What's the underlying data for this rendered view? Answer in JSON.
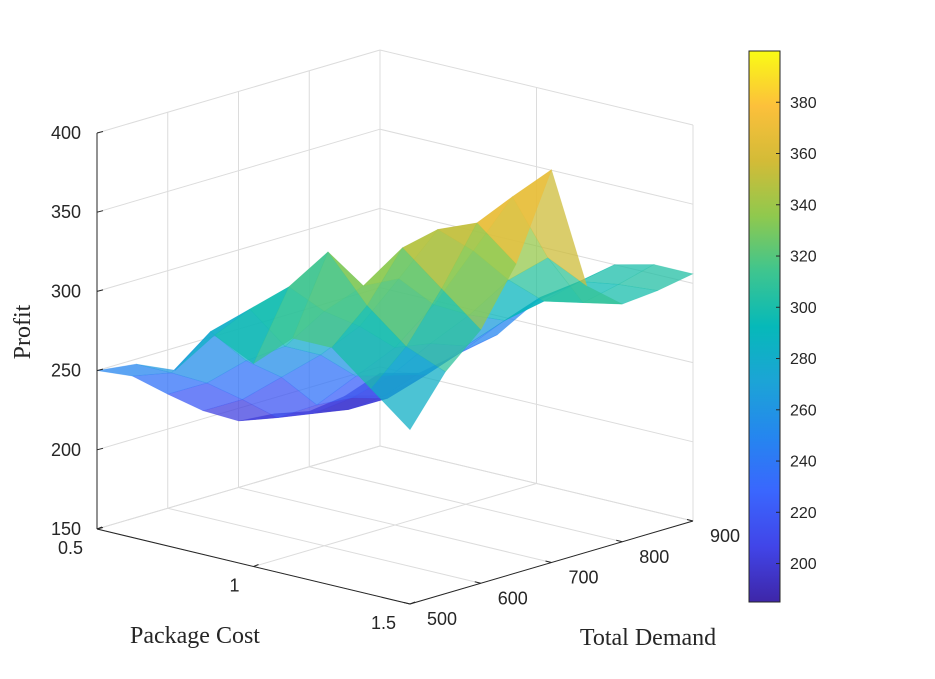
{
  "chart_data": {
    "type": "surface",
    "title": "",
    "xlabel": "Package Cost",
    "ylabel": "Total Demand",
    "zlabel": "Profit",
    "x": [
      0.5,
      0.625,
      0.75,
      0.875,
      1.0,
      1.125,
      1.25,
      1.375,
      1.5
    ],
    "y": [
      500,
      550,
      600,
      650,
      700,
      750,
      800,
      850,
      900
    ],
    "z": [
      [
        250,
        260,
        262,
        290,
        278,
        300,
        300,
        280,
        260
      ],
      [
        240,
        248,
        280,
        300,
        320,
        348,
        320,
        300,
        290
      ],
      [
        222,
        235,
        255,
        270,
        298,
        320,
        350,
        330,
        310
      ],
      [
        205,
        218,
        238,
        258,
        282,
        318,
        355,
        365,
        345
      ],
      [
        192,
        200,
        214,
        238,
        262,
        295,
        335,
        375,
        398
      ],
      [
        190,
        196,
        212,
        232,
        258,
        282,
        310,
        330,
        318
      ],
      [
        185,
        192,
        205,
        226,
        250,
        272,
        290,
        295,
        300
      ],
      [
        188,
        194,
        212,
        234,
        258,
        280,
        296,
        300,
        302
      ],
      [
        196,
        202,
        220,
        238,
        265,
        282,
        300,
        306,
        306
      ]
    ],
    "xlim": [
      0.5,
      1.5
    ],
    "ylim": [
      500,
      900
    ],
    "zlim": [
      150,
      400
    ],
    "xticks": [
      "0.5",
      "1",
      "1.5"
    ],
    "yticks": [
      "500",
      "600",
      "700",
      "800",
      "900"
    ],
    "zticks": [
      "150",
      "200",
      "250",
      "300",
      "350",
      "400"
    ],
    "colorbar": {
      "range": [
        185,
        400
      ],
      "ticks": [
        "200",
        "220",
        "240",
        "260",
        "280",
        "300",
        "320",
        "340",
        "360",
        "380"
      ],
      "colormap": "parula",
      "colors": [
        "#3e26a8",
        "#4145e8",
        "#3a66fe",
        "#2586ef",
        "#1ca4d6",
        "#06b9b9",
        "#3ec58f",
        "#8fc94e",
        "#d3bb37",
        "#fcc03b",
        "#f9fb15"
      ]
    },
    "grid": true,
    "face_alpha": 0.75
  }
}
